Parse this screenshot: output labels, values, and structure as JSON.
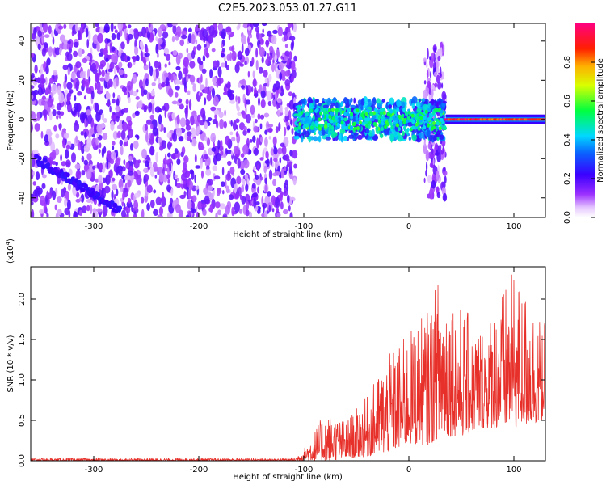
{
  "title": "C2E5.2023.053.01.27.G11",
  "colors": {
    "snr_line": "#e8302a",
    "axis": "#000000"
  },
  "chart_data": [
    {
      "type": "heatmap",
      "name": "spectrogram",
      "xlabel": "Height of straight line (km)",
      "ylabel": "Frequency (Hz)",
      "xlim": [
        -360,
        130
      ],
      "ylim": [
        -50,
        49
      ],
      "x_ticks": [
        -300,
        -200,
        -100,
        0,
        100
      ],
      "y_ticks": [
        -40,
        -20,
        0,
        20,
        40
      ],
      "colorbar": {
        "label": "Normalized spectral amplitude",
        "range": [
          0,
          1
        ],
        "ticks": [
          "0.0",
          "0.2",
          "0.4",
          "0.6",
          "0.8"
        ],
        "tick_values": [
          0.0,
          0.2,
          0.4,
          0.6,
          0.8
        ],
        "colormap": "rainbow (white-violet-blue-cyan-green-yellow-red-magenta)"
      },
      "regions": [
        {
          "x": [
            -360,
            -108
          ],
          "f": [
            -50,
            49
          ],
          "amplitude": [
            0.05,
            0.2
          ],
          "description": "broadband noise"
        },
        {
          "x": [
            -108,
            35
          ],
          "f": [
            -10,
            10
          ],
          "amplitude": [
            0.2,
            0.5
          ]
        },
        {
          "x": [
            15,
            35
          ],
          "f": [
            -40,
            38
          ],
          "amplitude": [
            0.05,
            0.2
          ]
        },
        {
          "x": [
            35,
            130
          ],
          "f": [
            -1,
            1
          ],
          "amplitude": [
            0.8,
            1.0
          ]
        }
      ]
    },
    {
      "type": "line",
      "name": "snr",
      "xlabel": "Height of straight line (km)",
      "ylabel": "SNR (10 * v/v)",
      "y_multiplier": "(x10^4)",
      "xlim": [
        -360,
        130
      ],
      "ylim": [
        0,
        2.4
      ],
      "x_ticks": [
        -300,
        -200,
        -100,
        0,
        100
      ],
      "y_ticks": [
        "0.0",
        "0.5",
        "1.0",
        "1.5",
        "2.0"
      ],
      "y_tick_values": [
        0.0,
        0.5,
        1.0,
        1.5,
        2.0
      ],
      "series": [
        {
          "color": "#e8302a",
          "envelope": [
            {
              "x": -360,
              "low": 0.0,
              "high": 0.03
            },
            {
              "x": -110,
              "low": 0.0,
              "high": 0.03
            },
            {
              "x": -100,
              "low": 0.0,
              "high": 0.15
            },
            {
              "x": -80,
              "low": 0.0,
              "high": 0.6
            },
            {
              "x": -60,
              "low": 0.02,
              "high": 0.5
            },
            {
              "x": -40,
              "low": 0.05,
              "high": 0.8
            },
            {
              "x": -20,
              "low": 0.1,
              "high": 1.3
            },
            {
              "x": 0,
              "low": 0.2,
              "high": 1.6
            },
            {
              "x": 20,
              "low": 0.2,
              "high": 1.9
            },
            {
              "x": 30,
              "low": 0.3,
              "high": 2.4
            },
            {
              "x": 50,
              "low": 0.3,
              "high": 1.9
            },
            {
              "x": 70,
              "low": 0.4,
              "high": 1.7
            },
            {
              "x": 100,
              "low": 0.4,
              "high": 2.35
            },
            {
              "x": 130,
              "low": 0.5,
              "high": 1.7
            }
          ]
        }
      ]
    }
  ]
}
